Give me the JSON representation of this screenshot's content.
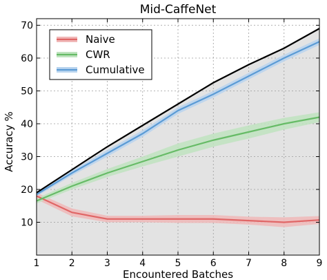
{
  "chart_data": {
    "type": "line",
    "title": "Mid-CaffeNet",
    "xlabel": "Encountered Batches",
    "ylabel": "Accuracy %",
    "xlim": [
      1,
      9
    ],
    "ylim": [
      0,
      72
    ],
    "x_ticks": [
      "1",
      "2",
      "3",
      "4",
      "5",
      "6",
      "7",
      "8",
      "9"
    ],
    "y_ticks": [
      "10",
      "20",
      "30",
      "40",
      "50",
      "60",
      "70"
    ],
    "x": [
      1,
      2,
      3,
      4,
      5,
      6,
      7,
      8,
      9
    ],
    "grid": true,
    "legend_position": "top-left",
    "background_band": {
      "color": "#e3e3e3",
      "upper_line_color": "#000000",
      "upper": [
        19,
        26,
        33,
        39.5,
        46,
        52.5,
        58,
        63,
        69
      ],
      "lower": [
        0,
        0,
        0,
        0,
        0,
        0,
        0,
        0,
        0
      ]
    },
    "series": [
      {
        "name": "Naive",
        "color": "#e06666",
        "band_color": "#f0b8b8",
        "values": [
          18,
          13,
          11,
          11,
          11,
          11,
          10.5,
          10,
          10.7
        ],
        "band": [
          1,
          1.2,
          1,
          1,
          1.2,
          1.2,
          1.2,
          1.5,
          1.2
        ]
      },
      {
        "name": "CWR",
        "color": "#66bb66",
        "band_color": "#bfe3bf",
        "values": [
          16.5,
          21,
          25,
          28.5,
          32,
          35,
          37.5,
          40,
          42
        ],
        "band": [
          0.8,
          1,
          1.2,
          1.5,
          2,
          2,
          2,
          1.8,
          1.5
        ]
      },
      {
        "name": "Cumulative",
        "color": "#5b9bd5",
        "band_color": "#b9d4ee",
        "values": [
          18.5,
          25,
          31,
          37,
          44,
          49,
          54.5,
          60,
          65
        ],
        "band": [
          0.6,
          0.8,
          1,
          1,
          1,
          1,
          1,
          1,
          1
        ]
      }
    ]
  }
}
